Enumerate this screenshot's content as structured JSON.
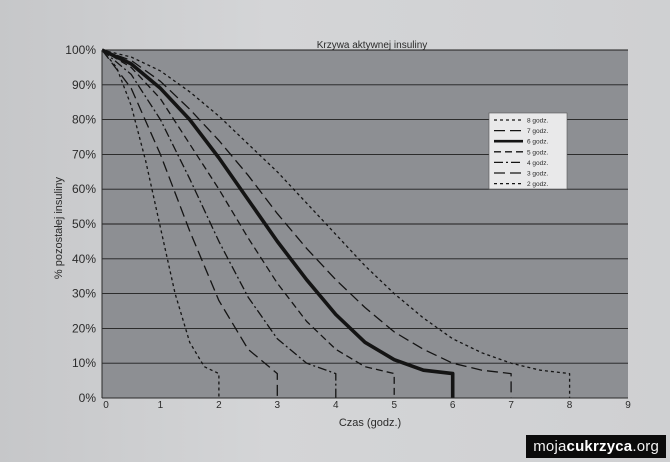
{
  "chart_data": {
    "type": "line",
    "title": "Krzywa aktywnej insuliny",
    "xlabel": "Czas (godz.)",
    "ylabel": "% pozostałej insuliny",
    "xlim": [
      0,
      9
    ],
    "ylim": [
      0,
      100
    ],
    "x_ticks": [
      "0",
      "1",
      "2",
      "3",
      "4",
      "5",
      "6",
      "7",
      "8",
      "9"
    ],
    "y_ticks": [
      "0%",
      "10%",
      "20%",
      "30%",
      "40%",
      "50%",
      "60%",
      "70%",
      "80%",
      "90%",
      "100%"
    ],
    "grid": "horizontal",
    "legend_position": "right",
    "plot_background": "#8d8f93",
    "series": [
      {
        "name": "8 godz.",
        "style": "short-dash",
        "x": [
          0,
          0.5,
          1,
          1.5,
          2,
          2.5,
          3,
          3.5,
          4,
          4.5,
          5,
          5.5,
          6,
          6.5,
          7,
          7.5,
          8,
          8
        ],
        "y": [
          100,
          98,
          94,
          88,
          81,
          73,
          65,
          56,
          47,
          38,
          30,
          23,
          17,
          13,
          10,
          8,
          7,
          0
        ]
      },
      {
        "name": "7 godz.",
        "style": "long-dash",
        "x": [
          0,
          0.5,
          1,
          1.5,
          2,
          2.5,
          3,
          3.5,
          4,
          4.5,
          5,
          5.5,
          6,
          6.5,
          7,
          7
        ],
        "y": [
          100,
          97,
          91,
          83,
          74,
          64,
          53,
          43,
          34,
          26,
          19,
          14,
          10,
          8,
          7,
          0
        ]
      },
      {
        "name": "6 godz.",
        "style": "solid-thick",
        "x": [
          0,
          0.5,
          1,
          1.5,
          2,
          2.5,
          3,
          3.5,
          4,
          4.5,
          5,
          5.5,
          6,
          6
        ],
        "y": [
          100,
          96,
          89,
          80,
          69,
          57,
          45,
          34,
          24,
          16,
          11,
          8,
          7,
          0
        ]
      },
      {
        "name": "5 godz.",
        "style": "dash",
        "x": [
          0,
          0.5,
          1,
          1.5,
          2,
          2.5,
          3,
          3.5,
          4,
          4.5,
          5,
          5
        ],
        "y": [
          100,
          95,
          86,
          73,
          60,
          46,
          33,
          22,
          14,
          9,
          7,
          0
        ]
      },
      {
        "name": "4 godz.",
        "style": "dash-dot",
        "x": [
          0,
          0.5,
          1,
          1.5,
          2,
          2.5,
          3,
          3.5,
          4,
          4
        ],
        "y": [
          100,
          93,
          80,
          63,
          45,
          29,
          17,
          10,
          7,
          0
        ]
      },
      {
        "name": "3 godz.",
        "style": "long-dash",
        "x": [
          0,
          0.5,
          1,
          1.5,
          2,
          2.5,
          3,
          3
        ],
        "y": [
          100,
          89,
          70,
          48,
          28,
          14,
          7,
          0
        ]
      },
      {
        "name": "2 godz.",
        "style": "short-dash",
        "x": [
          0,
          0.25,
          0.5,
          0.75,
          1,
          1.25,
          1.5,
          1.75,
          2,
          2
        ],
        "y": [
          100,
          95,
          84,
          68,
          49,
          30,
          16,
          9,
          7,
          0
        ]
      }
    ]
  },
  "watermark": {
    "prefix": "moja",
    "bold": "cukrzyca",
    "suffix": ".org"
  }
}
